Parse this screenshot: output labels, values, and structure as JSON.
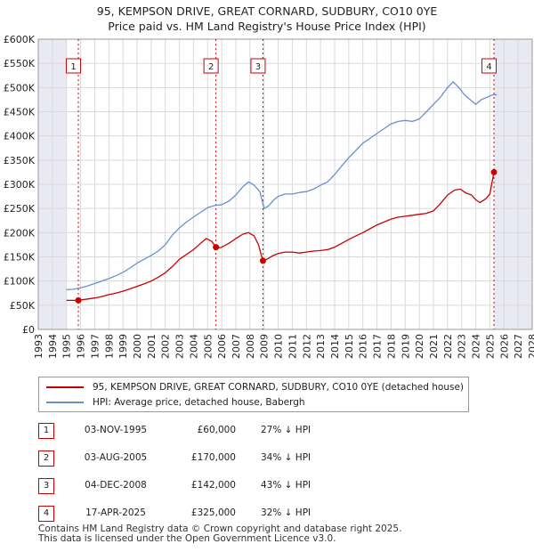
{
  "header": {
    "title": "95, KEMPSON DRIVE, GREAT CORNARD, SUDBURY, CO10 0YE",
    "subtitle": "Price paid vs. HM Land Registry's House Price Index (HPI)"
  },
  "colors": {
    "property": "#cc0000",
    "hpi": "#6a8fd0",
    "grid": "#d9d9d9",
    "shade": "#e9e9f3"
  },
  "chart_data": {
    "type": "line",
    "title": "Price paid vs. HM Land Registry's House Price Index (HPI)",
    "xlabel": "",
    "ylabel": "",
    "xlim": [
      1993,
      2028
    ],
    "ylim": [
      0,
      600000
    ],
    "x_ticks": [
      1993,
      1994,
      1995,
      1996,
      1997,
      1998,
      1999,
      2000,
      2001,
      2002,
      2003,
      2004,
      2005,
      2006,
      2007,
      2008,
      2009,
      2010,
      2011,
      2012,
      2013,
      2014,
      2015,
      2016,
      2017,
      2018,
      2019,
      2020,
      2021,
      2022,
      2023,
      2024,
      2025,
      2026,
      2027,
      2028
    ],
    "y_ticks": [
      {
        "value": 0,
        "label": "£0"
      },
      {
        "value": 50000,
        "label": "£50K"
      },
      {
        "value": 100000,
        "label": "£100K"
      },
      {
        "value": 150000,
        "label": "£150K"
      },
      {
        "value": 200000,
        "label": "£200K"
      },
      {
        "value": 250000,
        "label": "£250K"
      },
      {
        "value": 300000,
        "label": "£300K"
      },
      {
        "value": 350000,
        "label": "£350K"
      },
      {
        "value": 400000,
        "label": "£400K"
      },
      {
        "value": 450000,
        "label": "£450K"
      },
      {
        "value": 500000,
        "label": "£500K"
      },
      {
        "value": 550000,
        "label": "£550K"
      },
      {
        "value": 600000,
        "label": "£600K"
      }
    ],
    "shaded_ranges": [
      [
        1993,
        1995.0
      ],
      [
        2025.3,
        2028
      ]
    ],
    "series": [
      {
        "name": "95, KEMPSON DRIVE, GREAT CORNARD, SUDBURY, CO10 0YE (detached house)",
        "color": "#cc0000",
        "x": [
          1995.0,
          1995.84,
          1996.5,
          1997.0,
          1997.5,
          1998.0,
          1998.5,
          1999.0,
          1999.5,
          2000.0,
          2000.5,
          2001.0,
          2001.5,
          2002.0,
          2002.5,
          2003.0,
          2003.5,
          2004.0,
          2004.5,
          2004.9,
          2005.3,
          2005.59,
          2005.7,
          2006.0,
          2006.5,
          2007.0,
          2007.5,
          2007.9,
          2008.3,
          2008.6,
          2008.92,
          2009.2,
          2009.6,
          2010.0,
          2010.5,
          2011.0,
          2011.5,
          2012.0,
          2012.5,
          2013.0,
          2013.5,
          2014.0,
          2014.5,
          2015.0,
          2015.5,
          2016.0,
          2016.5,
          2017.0,
          2017.5,
          2018.0,
          2018.5,
          2019.0,
          2019.5,
          2020.0,
          2020.5,
          2021.0,
          2021.5,
          2022.0,
          2022.5,
          2022.9,
          2023.3,
          2023.7,
          2024.0,
          2024.3,
          2024.7,
          2025.0,
          2025.29
        ],
        "values": [
          60000,
          60000,
          63000,
          65000,
          68000,
          72000,
          75000,
          79000,
          84000,
          89000,
          94000,
          100000,
          108000,
          117000,
          130000,
          145000,
          155000,
          165000,
          178000,
          188000,
          182000,
          170000,
          168000,
          170000,
          178000,
          188000,
          197000,
          200000,
          193000,
          175000,
          142000,
          145000,
          152000,
          157000,
          160000,
          160000,
          158000,
          160000,
          162000,
          163000,
          165000,
          170000,
          178000,
          186000,
          193000,
          200000,
          208000,
          216000,
          222000,
          228000,
          232000,
          234000,
          236000,
          238000,
          240000,
          245000,
          260000,
          278000,
          288000,
          290000,
          282000,
          278000,
          268000,
          262000,
          270000,
          280000,
          325000
        ]
      },
      {
        "name": "HPI: Average price, detached house, Babergh",
        "color": "#6a8fd0",
        "x": [
          1995.0,
          1995.5,
          1996.0,
          1996.5,
          1997.0,
          1997.5,
          1998.0,
          1998.5,
          1999.0,
          1999.5,
          2000.0,
          2000.5,
          2001.0,
          2001.5,
          2002.0,
          2002.5,
          2003.0,
          2003.5,
          2004.0,
          2004.5,
          2005.0,
          2005.5,
          2006.0,
          2006.5,
          2007.0,
          2007.5,
          2007.9,
          2008.3,
          2008.7,
          2009.0,
          2009.3,
          2009.7,
          2010.0,
          2010.5,
          2011.0,
          2011.5,
          2012.0,
          2012.5,
          2013.0,
          2013.5,
          2014.0,
          2014.5,
          2015.0,
          2015.5,
          2016.0,
          2016.5,
          2017.0,
          2017.5,
          2018.0,
          2018.5,
          2019.0,
          2019.5,
          2020.0,
          2020.5,
          2021.0,
          2021.5,
          2022.0,
          2022.4,
          2022.8,
          2023.2,
          2023.6,
          2024.0,
          2024.4,
          2024.8,
          2025.2,
          2025.5
        ],
        "values": [
          82000,
          83000,
          86000,
          90000,
          95000,
          100000,
          105000,
          111000,
          118000,
          127000,
          137000,
          145000,
          153000,
          162000,
          175000,
          195000,
          210000,
          222000,
          232000,
          242000,
          252000,
          256000,
          258000,
          265000,
          278000,
          295000,
          305000,
          298000,
          285000,
          250000,
          255000,
          268000,
          275000,
          280000,
          280000,
          283000,
          285000,
          290000,
          298000,
          305000,
          320000,
          338000,
          355000,
          370000,
          385000,
          395000,
          405000,
          415000,
          425000,
          430000,
          432000,
          430000,
          435000,
          450000,
          465000,
          480000,
          500000,
          512000,
          500000,
          485000,
          475000,
          465000,
          475000,
          480000,
          485000,
          485000
        ]
      }
    ],
    "sales": [
      {
        "id": "1",
        "x": 1995.84,
        "value": 60000
      },
      {
        "id": "2",
        "x": 2005.59,
        "value": 170000
      },
      {
        "id": "3",
        "x": 2008.92,
        "value": 142000
      },
      {
        "id": "4",
        "x": 2025.29,
        "value": 325000
      }
    ]
  },
  "legend": {
    "property_label": "95, KEMPSON DRIVE, GREAT CORNARD, SUDBURY, CO10 0YE (detached house)",
    "hpi_label": "HPI: Average price, detached house, Babergh"
  },
  "sales_table": [
    {
      "id": "1",
      "date": "03-NOV-1995",
      "price": "£60,000",
      "hpi": "27% ↓ HPI"
    },
    {
      "id": "2",
      "date": "03-AUG-2005",
      "price": "£170,000",
      "hpi": "34% ↓ HPI"
    },
    {
      "id": "3",
      "date": "04-DEC-2008",
      "price": "£142,000",
      "hpi": "43% ↓ HPI"
    },
    {
      "id": "4",
      "date": "17-APR-2025",
      "price": "£325,000",
      "hpi": "32% ↓ HPI"
    }
  ],
  "footer": {
    "line1": "Contains HM Land Registry data © Crown copyright and database right 2025.",
    "line2": "This data is licensed under the Open Government Licence v3.0."
  }
}
